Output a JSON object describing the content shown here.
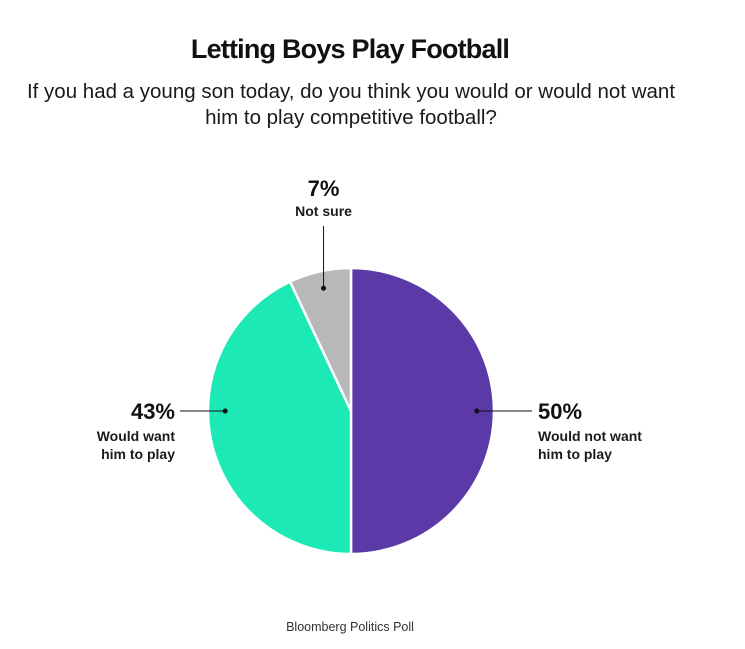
{
  "chart_data": {
    "type": "pie",
    "title": "Letting Boys Play Football",
    "subtitle": "If you had a young son today, do you think you would or would not want him to play competitive football?",
    "source": "Bloomberg Politics Poll",
    "slices": [
      {
        "value": 50,
        "value_label": "50%",
        "label_lines": [
          "Would not want",
          "him to play"
        ],
        "color": "#5b3aa8",
        "label_side": "right"
      },
      {
        "value": 43,
        "value_label": "43%",
        "label_lines": [
          "Would want",
          "him to play"
        ],
        "color": "#1de9b6",
        "label_side": "left"
      },
      {
        "value": 7,
        "value_label": "7%",
        "label_lines": [
          "Not sure"
        ],
        "color": "#b8b8b8",
        "label_side": "top"
      }
    ]
  }
}
